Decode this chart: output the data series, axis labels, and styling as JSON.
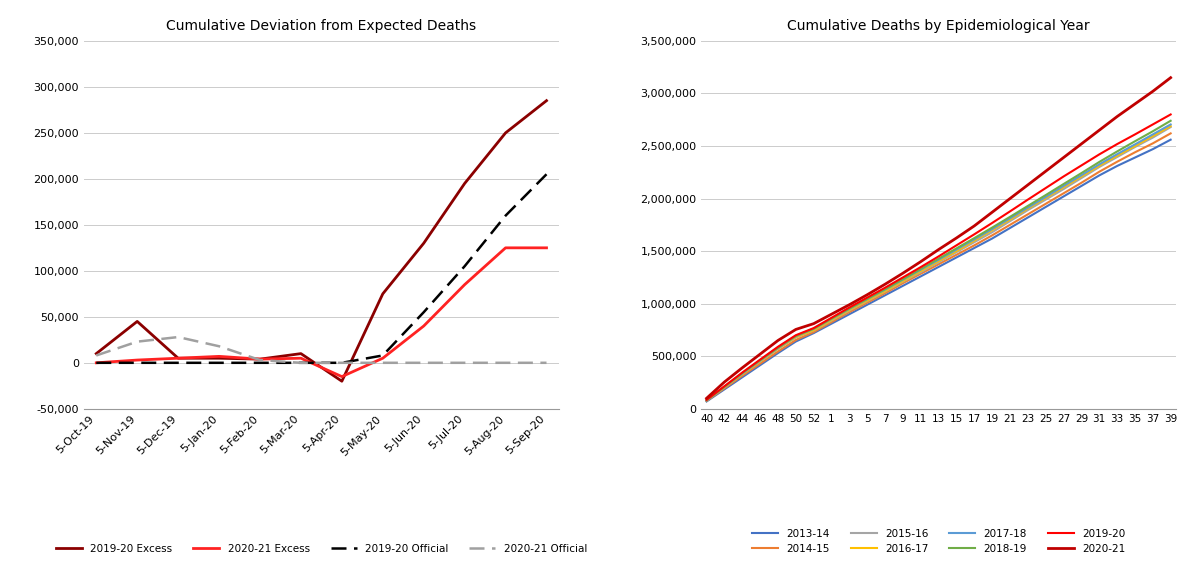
{
  "left_title": "Cumulative Deviation from Expected Deaths",
  "right_title": "Cumulative Deaths by Epidemiological Year",
  "left_xlabels": [
    "5-Oct-19",
    "5-Nov-19",
    "5-Dec-19",
    "5-Jan-20",
    "5-Feb-20",
    "5-Mar-20",
    "5-Apr-20",
    "5-May-20",
    "5-Jun-20",
    "5-Jul-20",
    "5-Aug-20",
    "5-Sep-20"
  ],
  "left_ylim": [
    -50000,
    350000
  ],
  "left_yticks": [
    -50000,
    0,
    50000,
    100000,
    150000,
    200000,
    250000,
    300000,
    350000
  ],
  "excess_2019_20": [
    10000,
    45000,
    5000,
    5000,
    4000,
    10000,
    -20000,
    75000,
    130000,
    195000,
    250000,
    285000
  ],
  "excess_2020_21": [
    0,
    3000,
    5000,
    7000,
    4000,
    5000,
    -15000,
    5000,
    40000,
    85000,
    125000,
    125000
  ],
  "official_2019_20": [
    0,
    0,
    0,
    0,
    0,
    0,
    0,
    8000,
    55000,
    105000,
    160000,
    205000
  ],
  "official_2020_21": [
    8000,
    23000,
    28000,
    18000,
    3000,
    0,
    0,
    0,
    0,
    0,
    0,
    0
  ],
  "right_xlabels": [
    "40",
    "42",
    "44",
    "46",
    "48",
    "50",
    "52",
    "1",
    "3",
    "5",
    "7",
    "9",
    "11",
    "13",
    "15",
    "17",
    "19",
    "21",
    "23",
    "25",
    "27",
    "29",
    "31",
    "33",
    "35",
    "37",
    "39"
  ],
  "right_ylim": [
    0,
    3500000
  ],
  "right_yticks": [
    0,
    500000,
    1000000,
    1500000,
    2000000,
    2500000,
    3000000,
    3500000
  ],
  "epi_weeks": [
    40,
    42,
    44,
    46,
    48,
    50,
    52,
    1,
    3,
    5,
    7,
    9,
    11,
    13,
    15,
    17,
    19,
    21,
    23,
    25,
    27,
    29,
    31,
    33,
    35,
    37,
    39
  ],
  "series_2013_14": [
    70000,
    185000,
    300000,
    415000,
    530000,
    640000,
    720000,
    810000,
    900000,
    990000,
    1080000,
    1170000,
    1260000,
    1350000,
    1440000,
    1530000,
    1620000,
    1720000,
    1820000,
    1920000,
    2020000,
    2120000,
    2220000,
    2310000,
    2390000,
    2470000,
    2560000
  ],
  "series_2014_15": [
    75000,
    195000,
    315000,
    430000,
    545000,
    655000,
    730000,
    825000,
    920000,
    1010000,
    1100000,
    1195000,
    1285000,
    1375000,
    1465000,
    1555000,
    1650000,
    1750000,
    1850000,
    1950000,
    2050000,
    2150000,
    2255000,
    2350000,
    2440000,
    2525000,
    2620000
  ],
  "series_2015_16": [
    80000,
    205000,
    330000,
    450000,
    570000,
    678000,
    745000,
    840000,
    935000,
    1025000,
    1115000,
    1210000,
    1300000,
    1395000,
    1490000,
    1585000,
    1680000,
    1785000,
    1890000,
    1990000,
    2090000,
    2195000,
    2300000,
    2395000,
    2490000,
    2580000,
    2680000
  ],
  "series_2016_17": [
    80000,
    205000,
    330000,
    452000,
    572000,
    682000,
    748000,
    845000,
    940000,
    1030000,
    1120000,
    1215000,
    1310000,
    1405000,
    1500000,
    1600000,
    1700000,
    1800000,
    1905000,
    2005000,
    2108000,
    2210000,
    2312000,
    2408000,
    2500000,
    2595000,
    2690000
  ],
  "series_2017_18": [
    80000,
    208000,
    335000,
    458000,
    578000,
    690000,
    760000,
    855000,
    950000,
    1042000,
    1133000,
    1228000,
    1323000,
    1418000,
    1515000,
    1612000,
    1710000,
    1812000,
    1914000,
    2015000,
    2120000,
    2222000,
    2325000,
    2422000,
    2515000,
    2610000,
    2705000
  ],
  "series_2018_19": [
    82000,
    210000,
    340000,
    462000,
    582000,
    693000,
    762000,
    858000,
    954000,
    1046000,
    1138000,
    1234000,
    1330000,
    1428000,
    1526000,
    1624000,
    1724000,
    1826000,
    1930000,
    2033000,
    2138000,
    2242000,
    2348000,
    2448000,
    2545000,
    2640000,
    2740000
  ],
  "series_2019_20": [
    85000,
    215000,
    345000,
    468000,
    590000,
    700000,
    768000,
    866000,
    964000,
    1058000,
    1152000,
    1250000,
    1348000,
    1450000,
    1555000,
    1660000,
    1768000,
    1878000,
    1990000,
    2100000,
    2210000,
    2315000,
    2420000,
    2518000,
    2610000,
    2705000,
    2800000
  ],
  "series_2020_21": [
    100000,
    255000,
    390000,
    520000,
    650000,
    755000,
    810000,
    900000,
    990000,
    1085000,
    1185000,
    1290000,
    1400000,
    1515000,
    1625000,
    1740000,
    1870000,
    2000000,
    2130000,
    2260000,
    2390000,
    2520000,
    2650000,
    2780000,
    2900000,
    3020000,
    3150000
  ],
  "colors_right": {
    "2013-14": "#4472C4",
    "2014-15": "#ED7D31",
    "2015-16": "#A5A5A5",
    "2016-17": "#FFC000",
    "2017-18": "#5B9BD5",
    "2018-19": "#70AD47",
    "2019-20": "#FF0000",
    "2020-21": "#C00000"
  },
  "bg_color": "#FFFFFF"
}
